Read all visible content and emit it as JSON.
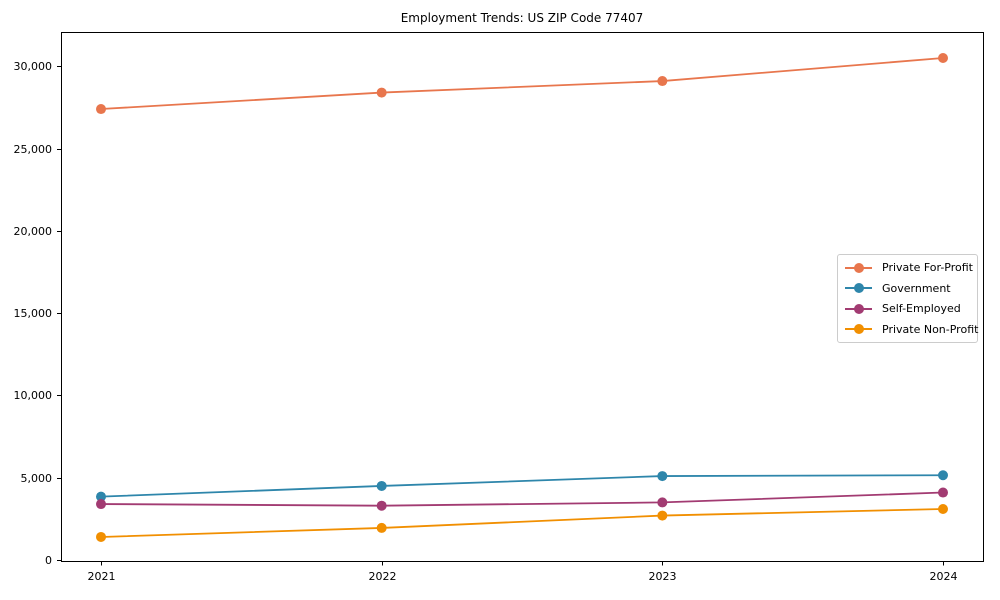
{
  "chart_data": {
    "type": "line",
    "title": "Employment Trends: US ZIP Code 77407",
    "xlabel": "",
    "ylabel": "",
    "categories": [
      "2021",
      "2022",
      "2023",
      "2024"
    ],
    "series": [
      {
        "name": "Private For-Profit",
        "color": "#e8764d",
        "values": [
          27400,
          28400,
          29100,
          30500
        ]
      },
      {
        "name": "Government",
        "color": "#2e86ab",
        "values": [
          3850,
          4500,
          5100,
          5150
        ]
      },
      {
        "name": "Self-Employed",
        "color": "#a23b72",
        "values": [
          3400,
          3300,
          3500,
          4100
        ]
      },
      {
        "name": "Private Non-Profit",
        "color": "#f18f01",
        "values": [
          1400,
          1950,
          2700,
          3100
        ]
      }
    ],
    "ylim": [
      -60,
      32080
    ],
    "yticks": [
      0,
      5000,
      10000,
      15000,
      20000,
      25000,
      30000
    ],
    "ytick_labels": [
      "0",
      "5,000",
      "10,000",
      "15,000",
      "20,000",
      "25,000",
      "30,000"
    ],
    "grid": false,
    "legend_position": "upper-right-inside",
    "marker": "circle",
    "axis_color": "#000000",
    "background_color": "#ffffff"
  }
}
